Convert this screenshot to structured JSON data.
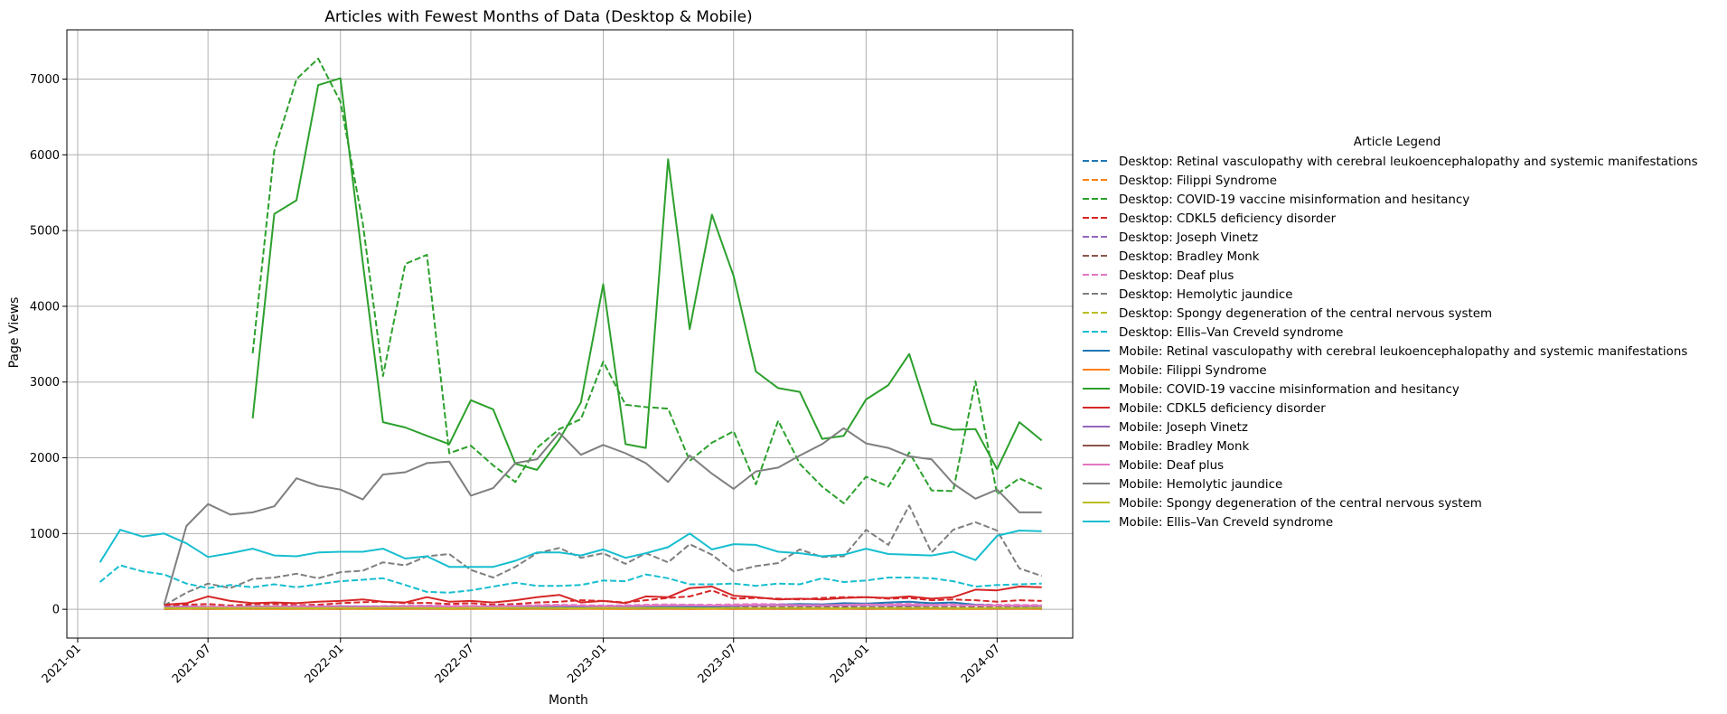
{
  "chart_data": {
    "type": "line",
    "title": "Articles with Fewest Months of Data (Desktop & Mobile)",
    "xlabel": "Month",
    "ylabel": "Page Views",
    "xlim": [
      "2020-12-17",
      "2024-10-14"
    ],
    "ylim": [
      -380,
      7650
    ],
    "xticks": [
      "2021-01",
      "2021-07",
      "2022-01",
      "2022-07",
      "2023-01",
      "2023-07",
      "2024-01",
      "2024-07"
    ],
    "yticks": [
      0,
      1000,
      2000,
      3000,
      4000,
      5000,
      6000,
      7000
    ],
    "grid": true,
    "legend_title": "Article Legend",
    "legend_position": "outside-right",
    "months": [
      "2021-02",
      "2021-03",
      "2021-04",
      "2021-05",
      "2021-06",
      "2021-07",
      "2021-08",
      "2021-09",
      "2021-10",
      "2021-11",
      "2021-12",
      "2022-01",
      "2022-02",
      "2022-03",
      "2022-04",
      "2022-05",
      "2022-06",
      "2022-07",
      "2022-08",
      "2022-09",
      "2022-10",
      "2022-11",
      "2022-12",
      "2023-01",
      "2023-02",
      "2023-03",
      "2023-04",
      "2023-05",
      "2023-06",
      "2023-07",
      "2023-08",
      "2023-09",
      "2023-10",
      "2023-11",
      "2023-12",
      "2024-01",
      "2024-02",
      "2024-03",
      "2024-04",
      "2024-05",
      "2024-06",
      "2024-07",
      "2024-08",
      "2024-09"
    ],
    "series": [
      {
        "name": "Desktop: Retinal vasculopathy with cerebral leukoencephalopathy and systemic manifestations",
        "color": "#1f77b4",
        "dash": true,
        "values": [
          null,
          null,
          null,
          10,
          12,
          14,
          12,
          15,
          13,
          12,
          14,
          16,
          14,
          15,
          13,
          12,
          14,
          16,
          15,
          13,
          14,
          12,
          14,
          15,
          13,
          12,
          14,
          16,
          15,
          14,
          13,
          15,
          16,
          14,
          13,
          15,
          14,
          13,
          12,
          14,
          16,
          15,
          14,
          13
        ]
      },
      {
        "name": "Desktop: Filippi Syndrome",
        "color": "#ff7f0e",
        "dash": true,
        "values": [
          null,
          null,
          null,
          5,
          6,
          7,
          6,
          5,
          6,
          7,
          6,
          5,
          6,
          7,
          6,
          5,
          6,
          7,
          6,
          5,
          6,
          7,
          6,
          5,
          6,
          7,
          6,
          5,
          6,
          7,
          6,
          5,
          6,
          7,
          6,
          5,
          6,
          7,
          6,
          5,
          6,
          7,
          6,
          5
        ]
      },
      {
        "name": "Desktop: COVID-19 vaccine misinformation and hesitancy",
        "color": "#2ca02c",
        "dash": true,
        "values": [
          null,
          null,
          null,
          null,
          null,
          null,
          null,
          3380,
          6050,
          7000,
          7270,
          6700,
          5100,
          3080,
          4560,
          4680,
          2060,
          2160,
          1900,
          1680,
          2130,
          2380,
          2510,
          3270,
          2700,
          2670,
          2650,
          1960,
          2200,
          2350,
          1650,
          2490,
          1920,
          1620,
          1400,
          1750,
          1620,
          2070,
          1570,
          1560,
          3010,
          1520,
          1730,
          1590
        ]
      },
      {
        "name": "Desktop: CDKL5 deficiency disorder",
        "color": "#d62728",
        "dash": true,
        "values": [
          null,
          null,
          null,
          55,
          60,
          70,
          50,
          65,
          70,
          55,
          60,
          80,
          95,
          100,
          80,
          85,
          70,
          80,
          60,
          70,
          90,
          100,
          120,
          110,
          90,
          120,
          150,
          170,
          250,
          140,
          150,
          140,
          130,
          150,
          160,
          160,
          140,
          150,
          120,
          130,
          120,
          100,
          120,
          110
        ]
      },
      {
        "name": "Desktop: Joseph Vinetz",
        "color": "#9467bd",
        "dash": true,
        "values": [
          null,
          null,
          null,
          20,
          25,
          22,
          20,
          24,
          22,
          21,
          25,
          30,
          28,
          25,
          24,
          22,
          28,
          30,
          24,
          26,
          28,
          24,
          27,
          30,
          28,
          25,
          27,
          30,
          28,
          27,
          30,
          29,
          27,
          28,
          30,
          28,
          27,
          26,
          28,
          30,
          27,
          25,
          28,
          26
        ]
      },
      {
        "name": "Desktop: Bradley Monk",
        "color": "#8c564b",
        "dash": true,
        "values": [
          null,
          null,
          null,
          20,
          22,
          24,
          20,
          23,
          21,
          22,
          24,
          25,
          23,
          22,
          24,
          26,
          23,
          22,
          24,
          25,
          23,
          22,
          24,
          26,
          25,
          23,
          24,
          26,
          25,
          23,
          24,
          25,
          23,
          24,
          26,
          25,
          24,
          23,
          25,
          24,
          23,
          22,
          24,
          23
        ]
      },
      {
        "name": "Desktop: Deaf plus",
        "color": "#e377c2",
        "dash": true,
        "values": [
          null,
          null,
          null,
          30,
          35,
          40,
          38,
          36,
          40,
          45,
          42,
          40,
          38,
          42,
          45,
          50,
          48,
          46,
          44,
          50,
          55,
          60,
          55,
          50,
          52,
          60,
          65,
          62,
          60,
          65,
          70,
          68,
          66,
          64,
          70,
          75,
          70,
          72,
          68,
          65,
          62,
          60,
          58,
          55
        ]
      },
      {
        "name": "Desktop: Hemolytic jaundice",
        "color": "#7f7f7f",
        "dash": true,
        "values": [
          null,
          null,
          null,
          50,
          220,
          340,
          280,
          400,
          420,
          470,
          410,
          490,
          510,
          620,
          580,
          700,
          730,
          520,
          420,
          560,
          740,
          810,
          680,
          740,
          600,
          740,
          620,
          860,
          720,
          500,
          570,
          610,
          790,
          690,
          700,
          1050,
          850,
          1370,
          750,
          1050,
          1150,
          1040,
          540,
          440
        ]
      },
      {
        "name": "Desktop: Spongy degeneration of the central nervous system",
        "color": "#bcbd22",
        "dash": true,
        "values": [
          null,
          null,
          null,
          10,
          12,
          11,
          10,
          12,
          13,
          11,
          12,
          14,
          13,
          12,
          11,
          13,
          14,
          12,
          11,
          13,
          12,
          14,
          13,
          12,
          11,
          13,
          12,
          14,
          13,
          12,
          11,
          13,
          12,
          14,
          13,
          12,
          11,
          13,
          12,
          14,
          13,
          12,
          11,
          13
        ]
      },
      {
        "name": "Desktop: Ellis–Van Creveld syndrome",
        "color": "#17becf",
        "dash": true,
        "values": [
          360,
          580,
          500,
          460,
          340,
          280,
          320,
          290,
          330,
          290,
          330,
          370,
          390,
          410,
          320,
          230,
          220,
          250,
          300,
          350,
          310,
          310,
          320,
          380,
          370,
          460,
          410,
          330,
          330,
          340,
          310,
          340,
          330,
          410,
          360,
          380,
          420,
          420,
          410,
          370,
          300,
          320,
          330,
          340
        ]
      },
      {
        "name": "Mobile: Retinal vasculopathy with cerebral leukoencephalopathy and systemic manifestations",
        "color": "#1f77b4",
        "dash": false,
        "values": [
          null,
          null,
          null,
          20,
          22,
          24,
          21,
          23,
          25,
          22,
          24,
          26,
          25,
          23,
          24,
          22,
          26,
          25,
          23,
          24,
          26,
          25,
          27,
          26,
          28,
          30,
          32,
          35,
          38,
          40,
          55,
          60,
          70,
          65,
          80,
          75,
          90,
          100,
          80,
          90,
          60,
          50,
          45,
          40
        ]
      },
      {
        "name": "Mobile: Filippi Syndrome",
        "color": "#ff7f0e",
        "dash": false,
        "values": [
          null,
          null,
          null,
          5,
          6,
          5,
          7,
          6,
          5,
          6,
          7,
          5,
          6,
          5,
          7,
          6,
          5,
          6,
          7,
          5,
          6,
          5,
          7,
          6,
          5,
          6,
          7,
          5,
          6,
          5,
          7,
          6,
          5,
          6,
          7,
          5,
          6,
          5,
          7,
          6,
          5,
          6,
          7,
          5
        ]
      },
      {
        "name": "Mobile: COVID-19 vaccine misinformation and hesitancy",
        "color": "#2ca02c",
        "dash": false,
        "values": [
          null,
          null,
          null,
          null,
          null,
          null,
          null,
          2520,
          5220,
          5400,
          6920,
          7010,
          4580,
          2470,
          2400,
          2290,
          2180,
          2760,
          2640,
          1920,
          1840,
          2240,
          2730,
          4290,
          2180,
          2130,
          5940,
          3700,
          5210,
          4400,
          3140,
          2920,
          2870,
          2250,
          2290,
          2770,
          2960,
          3370,
          2450,
          2370,
          2380,
          1850,
          2470,
          2230
        ]
      },
      {
        "name": "Mobile: CDKL5 deficiency disorder",
        "color": "#d62728",
        "dash": false,
        "values": [
          null,
          null,
          null,
          60,
          80,
          170,
          110,
          80,
          90,
          80,
          100,
          110,
          130,
          100,
          90,
          160,
          100,
          110,
          90,
          120,
          160,
          190,
          90,
          110,
          80,
          170,
          160,
          280,
          300,
          180,
          160,
          130,
          140,
          130,
          150,
          160,
          150,
          170,
          140,
          160,
          260,
          250,
          300,
          290
        ]
      },
      {
        "name": "Mobile: Joseph Vinetz",
        "color": "#9467bd",
        "dash": false,
        "values": [
          null,
          null,
          null,
          30,
          35,
          32,
          30,
          34,
          36,
          38,
          35,
          40,
          38,
          36,
          40,
          42,
          38,
          36,
          40,
          42,
          45,
          48,
          44,
          42,
          45,
          48,
          50,
          52,
          48,
          46,
          50,
          52,
          50,
          48,
          52,
          55,
          52,
          50,
          54,
          56,
          52,
          50,
          48,
          46
        ]
      },
      {
        "name": "Mobile: Bradley Monk",
        "color": "#8c564b",
        "dash": false,
        "values": [
          null,
          null,
          null,
          10,
          12,
          11,
          13,
          12,
          14,
          13,
          12,
          11,
          13,
          14,
          12,
          11,
          13,
          12,
          14,
          13,
          12,
          11,
          13,
          14,
          12,
          11,
          13,
          12,
          14,
          13,
          12,
          11,
          13,
          14,
          12,
          11,
          13,
          12,
          14,
          13,
          12,
          11,
          13,
          12
        ]
      },
      {
        "name": "Mobile: Deaf plus",
        "color": "#e377c2",
        "dash": false,
        "values": [
          null,
          null,
          null,
          20,
          25,
          30,
          28,
          26,
          30,
          35,
          32,
          30,
          28,
          32,
          35,
          40,
          38,
          36,
          34,
          40,
          45,
          50,
          45,
          40,
          42,
          48,
          55,
          52,
          50,
          55,
          60,
          58,
          56,
          54,
          60,
          65,
          60,
          62,
          58,
          55,
          52,
          50,
          48,
          45
        ]
      },
      {
        "name": "Mobile: Hemolytic jaundice",
        "color": "#7f7f7f",
        "dash": false,
        "values": [
          null,
          null,
          null,
          60,
          1100,
          1390,
          1250,
          1280,
          1360,
          1730,
          1630,
          1580,
          1450,
          1780,
          1810,
          1930,
          1950,
          1500,
          1600,
          1930,
          1980,
          2330,
          2040,
          2170,
          2060,
          1930,
          1680,
          2030,
          1790,
          1590,
          1820,
          1870,
          2030,
          2180,
          2390,
          2190,
          2130,
          2020,
          1980,
          1660,
          1460,
          1580,
          1280,
          1280
        ]
      },
      {
        "name": "Mobile: Spongy degeneration of the central nervous system",
        "color": "#bcbd22",
        "dash": false,
        "values": [
          null,
          null,
          null,
          15,
          14,
          16,
          15,
          17,
          16,
          15,
          14,
          16,
          15,
          17,
          16,
          15,
          14,
          16,
          15,
          17,
          16,
          15,
          14,
          16,
          15,
          17,
          16,
          15,
          14,
          16,
          15,
          17,
          16,
          15,
          14,
          16,
          15,
          17,
          16,
          15,
          14,
          16,
          15,
          17
        ]
      },
      {
        "name": "Mobile: Ellis–Van Creveld syndrome",
        "color": "#17becf",
        "dash": false,
        "values": [
          620,
          1050,
          960,
          1000,
          870,
          690,
          740,
          800,
          710,
          700,
          750,
          760,
          760,
          800,
          670,
          700,
          560,
          560,
          560,
          640,
          750,
          750,
          710,
          790,
          680,
          740,
          820,
          1000,
          790,
          860,
          850,
          760,
          740,
          700,
          720,
          800,
          730,
          720,
          710,
          760,
          650,
          970,
          1040,
          1030
        ]
      }
    ]
  }
}
